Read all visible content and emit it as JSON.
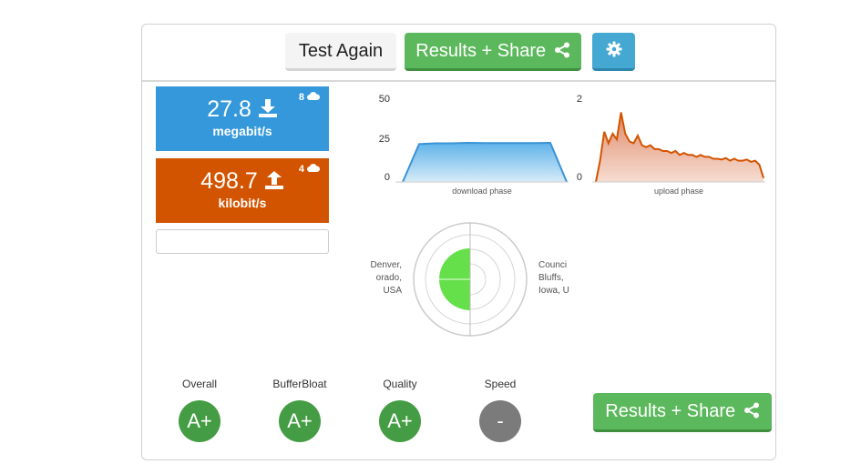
{
  "toolbar": {
    "test_again_label": "Test Again",
    "results_share_label": "Results + Share"
  },
  "download": {
    "value": "27.8",
    "unit": "megabit/s",
    "servers": "8"
  },
  "upload": {
    "value": "498.7",
    "unit": "kilobit/s",
    "servers": "4"
  },
  "download_chart": {
    "y_ticks": [
      "50",
      "25",
      "0"
    ],
    "phase_label": "download phase"
  },
  "upload_chart": {
    "y_ticks": [
      "2",
      "0"
    ],
    "phase_label": "upload phase"
  },
  "servers_map": {
    "left_location": [
      "Denver,",
      "orado,",
      "USA"
    ],
    "right_location": [
      "Counci",
      "Bluffs,",
      "Iowa, U"
    ]
  },
  "grades": [
    {
      "label": "Overall",
      "grade": "A+",
      "color": "#449d44"
    },
    {
      "label": "BufferBloat",
      "grade": "A+",
      "color": "#449d44"
    },
    {
      "label": "Quality",
      "grade": "A+",
      "color": "#449d44"
    },
    {
      "label": "Speed",
      "grade": "-",
      "color": "#7b7b7b"
    }
  ],
  "bottom": {
    "results_share_label": "Results + Share"
  },
  "colors": {
    "download_blue": "#3498db",
    "upload_orange": "#d35400",
    "share_green": "#5cb85c",
    "settings_blue": "#45a8d3",
    "radar_green": "#66e04a"
  },
  "chart_data": [
    {
      "type": "area",
      "phase": "download phase",
      "ylim": [
        0,
        50
      ],
      "y_ticks": [
        0,
        25,
        50
      ],
      "x": [
        0,
        1,
        2,
        3,
        4,
        5,
        6,
        7,
        8,
        9,
        10
      ],
      "values": [
        0,
        24.5,
        25,
        25,
        25.3,
        25.2,
        25.1,
        25.2,
        25.2,
        25.3,
        0
      ]
    },
    {
      "type": "area",
      "phase": "upload phase",
      "ylim": [
        0,
        2
      ],
      "y_ticks": [
        0,
        2
      ],
      "x": [
        0,
        1,
        2,
        3,
        4,
        5,
        6,
        7,
        8,
        9,
        10,
        11,
        12,
        13,
        14,
        15,
        16,
        17,
        18,
        19,
        20,
        21,
        22,
        23,
        24,
        25,
        26,
        27,
        28,
        29,
        30,
        31,
        32,
        33,
        34,
        35,
        36,
        37,
        38,
        39,
        40
      ],
      "values": [
        0,
        0.55,
        1.3,
        1.0,
        1.25,
        1.1,
        1.8,
        1.25,
        1.05,
        1.0,
        1.2,
        0.95,
        0.9,
        0.95,
        0.85,
        0.85,
        0.8,
        0.8,
        0.75,
        0.8,
        0.7,
        0.75,
        0.7,
        0.7,
        0.65,
        0.7,
        0.65,
        0.65,
        0.6,
        0.6,
        0.58,
        0.62,
        0.55,
        0.6,
        0.55,
        0.55,
        0.58,
        0.52,
        0.55,
        0.45,
        0.1
      ]
    }
  ]
}
